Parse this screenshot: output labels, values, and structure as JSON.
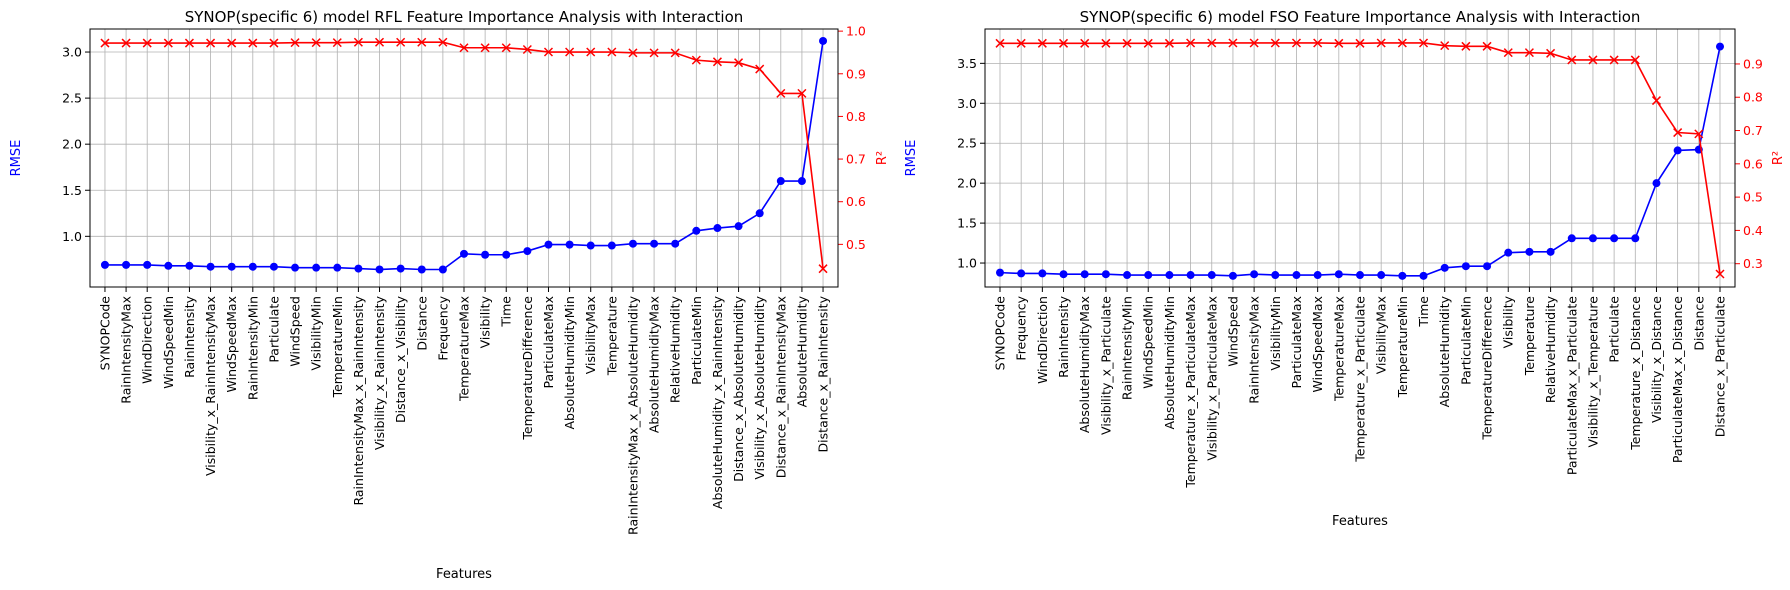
{
  "chart_data": [
    {
      "type": "line",
      "title": "SYNOP(specific 6) model RFL Feature Importance Analysis with Interaction",
      "xlabel": "Features",
      "ylabel_left": "RMSE",
      "ylabel_right": "R²",
      "ylim_left": [
        0.45,
        3.25
      ],
      "yticks_left": [
        "1.0",
        "1.5",
        "2.0",
        "2.5",
        "3.0"
      ],
      "ylim_right": [
        0.4,
        1.005
      ],
      "yticks_right": [
        "0.5",
        "0.6",
        "0.7",
        "0.8",
        "0.9",
        "1.0"
      ],
      "grid": true,
      "colors": {
        "rmse": "#0000ff",
        "r2": "#ff0000"
      },
      "categories": [
        "SYNOPCode",
        "RainIntensityMax",
        "WindDirection",
        "WindSpeedMin",
        "RainIntensity",
        "Visibility_x_RainIntensityMax",
        "WindSpeedMax",
        "RainIntensityMin",
        "Particulate",
        "WindSpeed",
        "VisibilityMin",
        "TemperatureMin",
        "RainIntensityMax_x_RainIntensity",
        "Visibility_x_RainIntensity",
        "Distance_x_Visibility",
        "Distance",
        "Frequency",
        "TemperatureMax",
        "Visibility",
        "Time",
        "TemperatureDifference",
        "ParticulateMax",
        "AbsoluteHumidityMin",
        "VisibilityMax",
        "Temperature",
        "RainIntensityMax_x_AbsoluteHumidity",
        "AbsoluteHumidityMax",
        "RelativeHumidity",
        "ParticulateMin",
        "AbsoluteHumidity_x_RainIntensity",
        "Distance_x_AbsoluteHumidity",
        "Visibility_x_AbsoluteHumidity",
        "Distance_x_RainIntensityMax",
        "AbsoluteHumidity",
        "Distance_x_RainIntensity"
      ],
      "series": [
        {
          "name": "RMSE",
          "axis": "left",
          "values": [
            0.69,
            0.69,
            0.69,
            0.68,
            0.68,
            0.67,
            0.67,
            0.67,
            0.67,
            0.66,
            0.66,
            0.66,
            0.65,
            0.64,
            0.65,
            0.64,
            0.64,
            0.81,
            0.8,
            0.8,
            0.84,
            0.91,
            0.91,
            0.9,
            0.9,
            0.92,
            0.92,
            0.92,
            1.06,
            1.09,
            1.11,
            1.25,
            1.6,
            1.6,
            3.12
          ]
        },
        {
          "name": "R²",
          "axis": "right",
          "values": [
            0.972,
            0.972,
            0.972,
            0.972,
            0.972,
            0.972,
            0.972,
            0.972,
            0.972,
            0.973,
            0.973,
            0.973,
            0.974,
            0.974,
            0.974,
            0.974,
            0.974,
            0.961,
            0.961,
            0.961,
            0.957,
            0.951,
            0.951,
            0.951,
            0.951,
            0.949,
            0.949,
            0.949,
            0.932,
            0.928,
            0.926,
            0.911,
            0.854,
            0.854,
            0.443
          ]
        }
      ]
    },
    {
      "type": "line",
      "title": "SYNOP(specific 6) model FSO Feature Importance Analysis with Interaction",
      "xlabel": "Features",
      "ylabel_left": "RMSE",
      "ylabel_right": "R²",
      "ylim_left": [
        0.7,
        3.93
      ],
      "yticks_left": [
        "1.0",
        "1.5",
        "2.0",
        "2.5",
        "3.0",
        "3.5"
      ],
      "ylim_right": [
        0.23,
        1.005
      ],
      "yticks_right": [
        "0.3",
        "0.4",
        "0.5",
        "0.6",
        "0.7",
        "0.8",
        "0.9"
      ],
      "grid": true,
      "colors": {
        "rmse": "#0000ff",
        "r2": "#ff0000"
      },
      "categories": [
        "SYNOPCode",
        "Frequency",
        "WindDirection",
        "RainIntensity",
        "AbsoluteHumidityMax",
        "Visibility_x_Particulate",
        "RainIntensityMin",
        "WindSpeedMin",
        "AbsoluteHumidityMin",
        "Temperature_x_ParticulateMax",
        "Visibility_x_ParticulateMax",
        "WindSpeed",
        "RainIntensityMax",
        "VisibilityMin",
        "ParticulateMax",
        "WindSpeedMax",
        "TemperatureMax",
        "Temperature_x_Particulate",
        "VisibilityMax",
        "TemperatureMin",
        "Time",
        "AbsoluteHumidity",
        "ParticulateMin",
        "TemperatureDifference",
        "Visibility",
        "Temperature",
        "RelativeHumidity",
        "ParticulateMax_x_Particulate",
        "Visibility_x_Temperature",
        "Particulate",
        "Temperature_x_Distance",
        "Visibility_x_Distance",
        "ParticulateMax_x_Distance",
        "Distance",
        "Distance_x_Particulate"
      ],
      "series": [
        {
          "name": "RMSE",
          "axis": "left",
          "values": [
            0.88,
            0.87,
            0.87,
            0.86,
            0.86,
            0.86,
            0.85,
            0.85,
            0.85,
            0.85,
            0.85,
            0.84,
            0.86,
            0.85,
            0.85,
            0.85,
            0.86,
            0.85,
            0.85,
            0.84,
            0.84,
            0.94,
            0.96,
            0.96,
            1.13,
            1.14,
            1.14,
            1.31,
            1.31,
            1.31,
            1.31,
            2.0,
            2.41,
            2.42,
            3.71
          ]
        },
        {
          "name": "R²",
          "axis": "right",
          "values": [
            0.962,
            0.962,
            0.962,
            0.962,
            0.962,
            0.962,
            0.962,
            0.962,
            0.962,
            0.963,
            0.963,
            0.963,
            0.963,
            0.963,
            0.963,
            0.963,
            0.962,
            0.962,
            0.963,
            0.963,
            0.963,
            0.955,
            0.953,
            0.953,
            0.934,
            0.934,
            0.932,
            0.912,
            0.912,
            0.912,
            0.912,
            0.79,
            0.694,
            0.69,
            0.269
          ]
        }
      ]
    }
  ]
}
